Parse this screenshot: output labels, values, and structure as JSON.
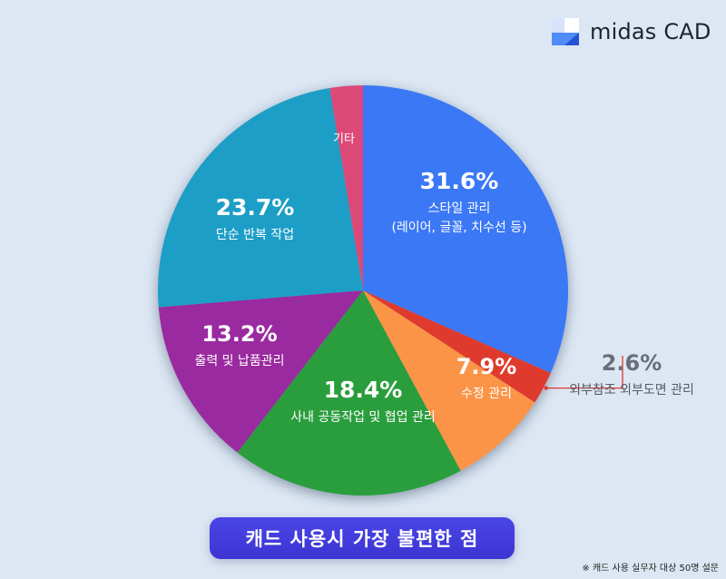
{
  "brand": {
    "name": "midas CAD",
    "icon": "midas-logo-icon"
  },
  "chart_data": {
    "type": "pie",
    "slices": [
      {
        "value": 31.6,
        "pct_label": "31.6%",
        "label_lines": [
          "스타일 관리",
          "(레이어, 글꼴, 치수선 등)"
        ],
        "color": "#3a78f5"
      },
      {
        "value": 2.6,
        "pct_label": "2.6%",
        "label_lines": [
          "외부참조 외부도면 관리"
        ],
        "color": "#de3b2e"
      },
      {
        "value": 7.9,
        "pct_label": "7.9%",
        "label_lines": [
          "수정 관리"
        ],
        "color": "#fb9447"
      },
      {
        "value": 18.4,
        "pct_label": "18.4%",
        "label_lines": [
          "사내 공동작업 및 협업 관리"
        ],
        "color": "#2b9e3c"
      },
      {
        "value": 13.2,
        "pct_label": "13.2%",
        "label_lines": [
          "출력 및 납품관리"
        ],
        "color": "#9a2a9f"
      },
      {
        "value": 23.7,
        "pct_label": "23.7%",
        "label_lines": [
          "단순 반복 작업"
        ],
        "color": "#1e9ec6"
      },
      {
        "value": 2.6,
        "pct_label": "",
        "label_lines": [
          "기타"
        ],
        "color": "#dc4a78"
      }
    ]
  },
  "footer": {
    "title": "캐드 사용시 가장 불편한 점",
    "note": "※ 캐드 사용 실무자 대상 50명 설문"
  }
}
